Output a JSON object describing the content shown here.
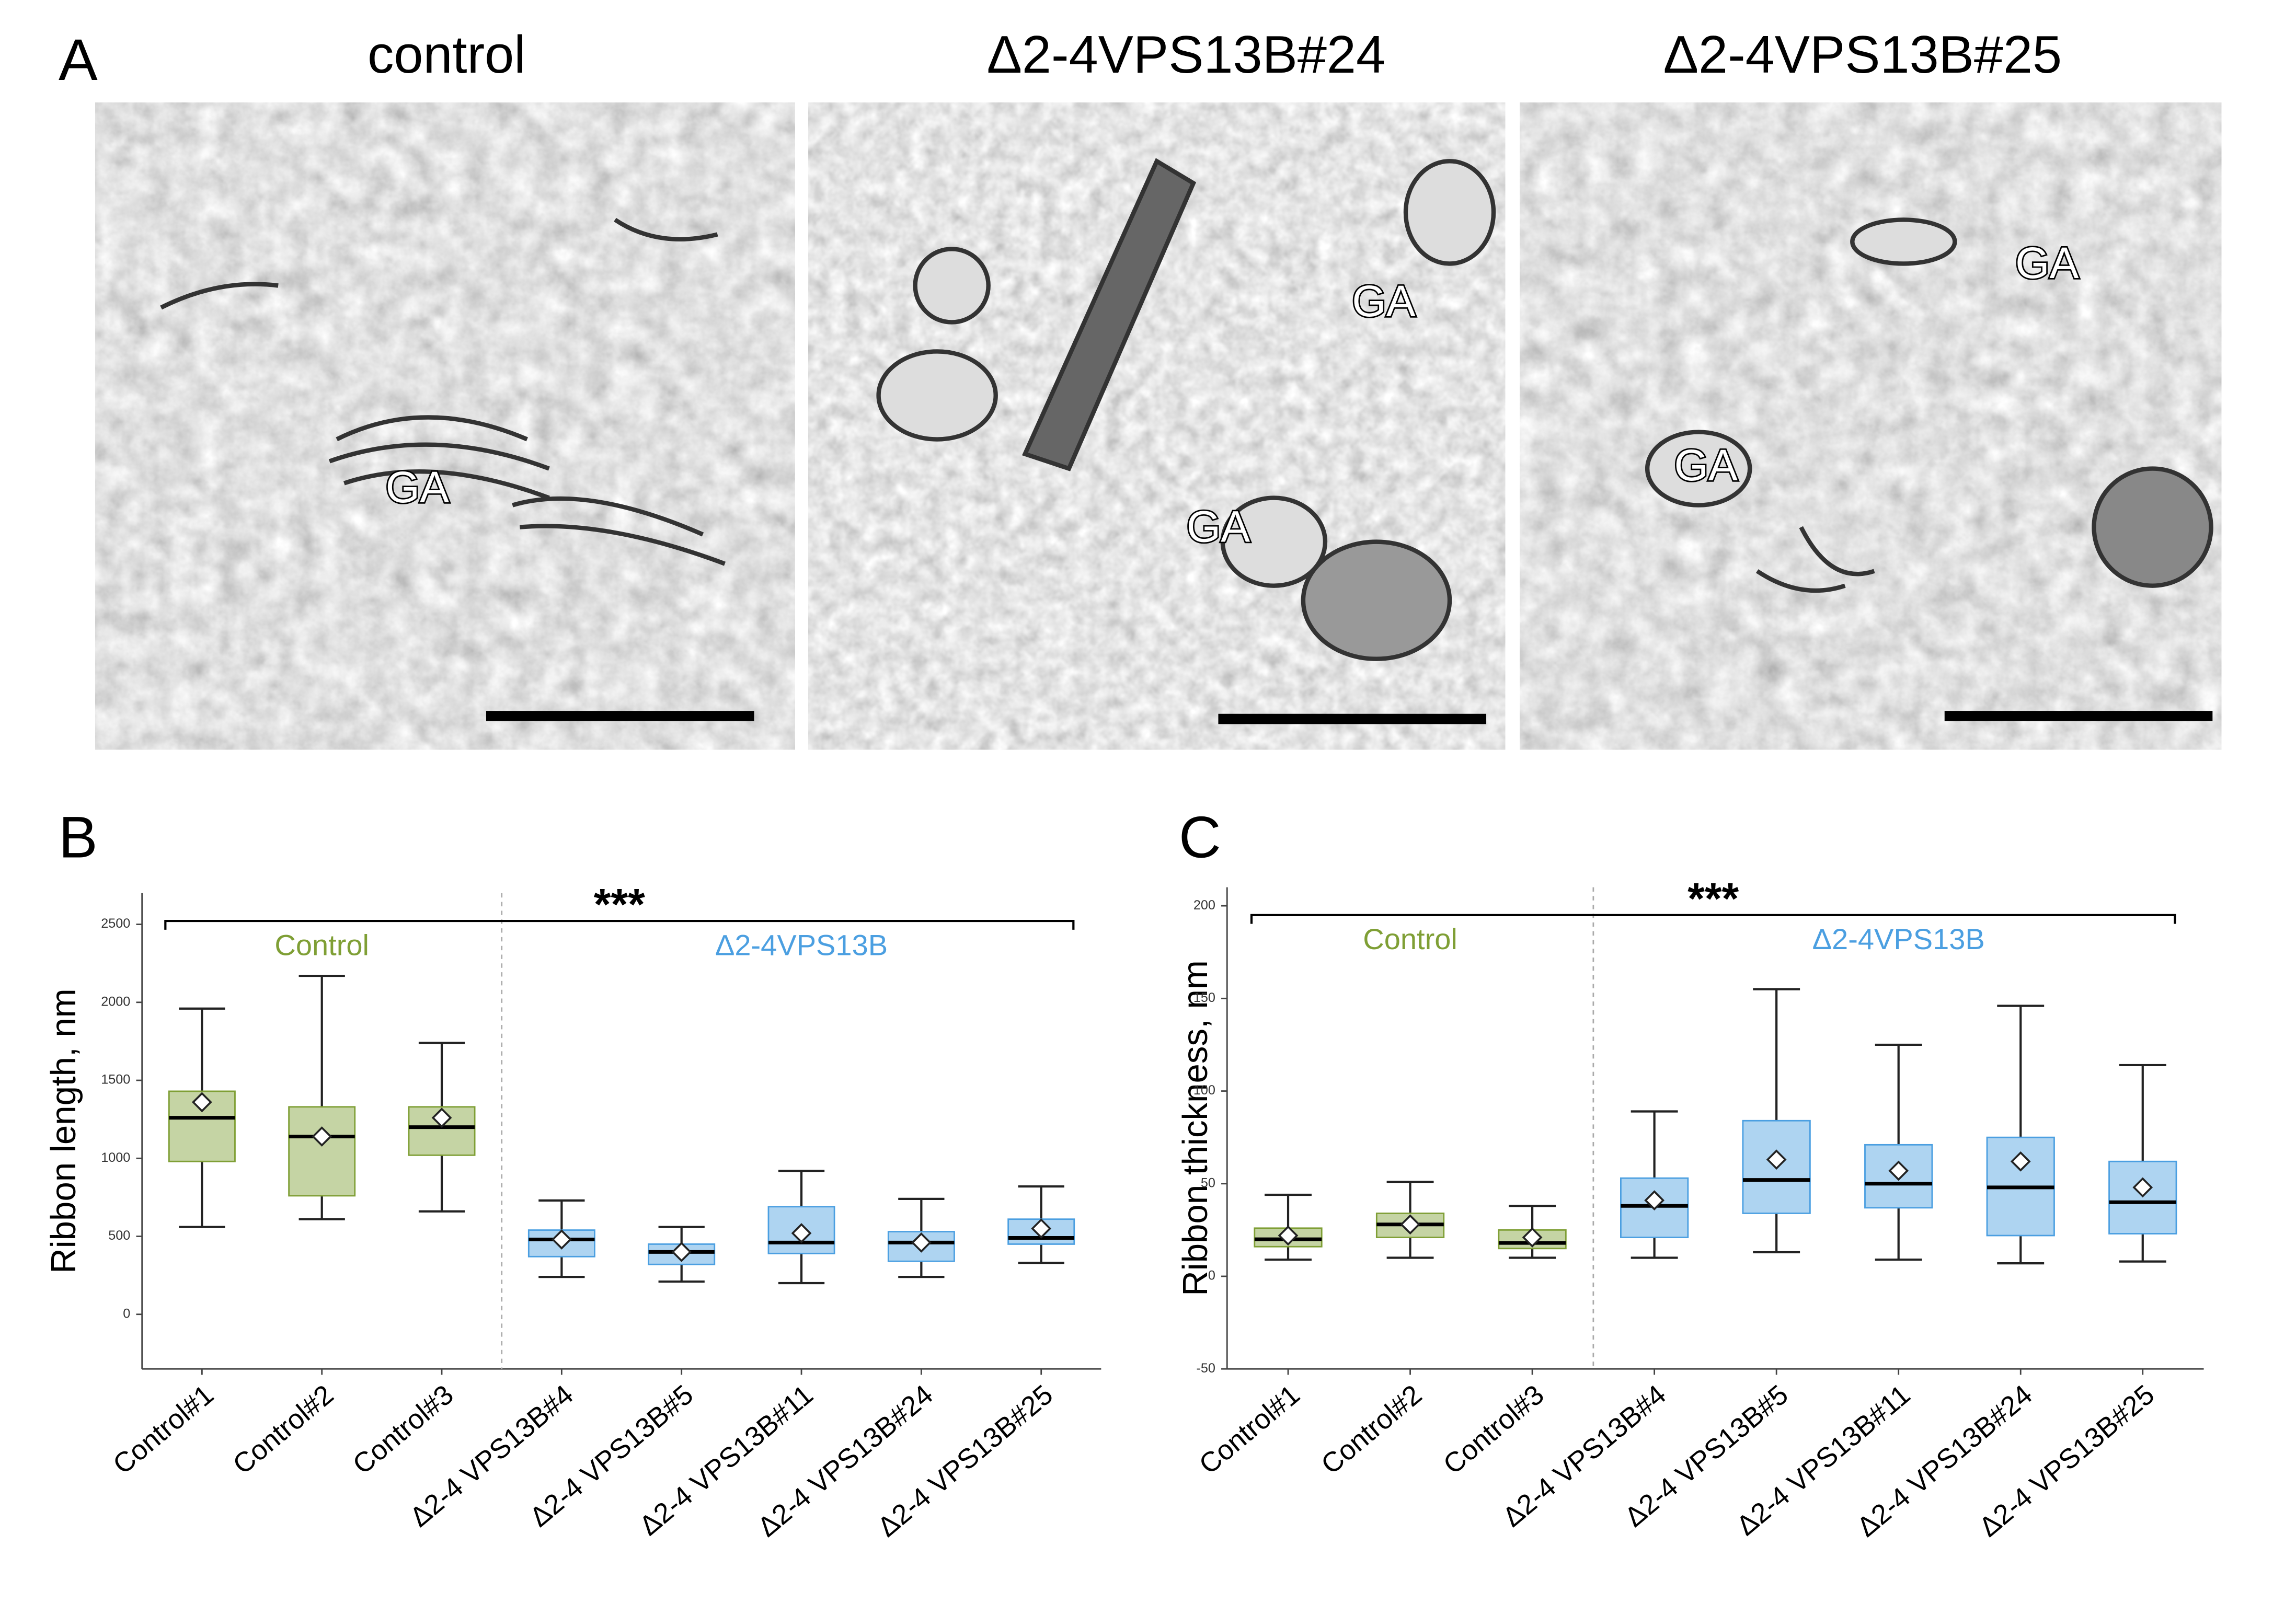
{
  "panel_a": {
    "label": "A",
    "images": [
      {
        "title": "control",
        "annotations": [
          "GA"
        ]
      },
      {
        "title": "Δ2-4VPS13B#24",
        "annotations": [
          "GA",
          "GA"
        ]
      },
      {
        "title": "Δ2-4VPS13B#25",
        "annotations": [
          "GA",
          "GA"
        ]
      }
    ]
  },
  "chart_data": [
    {
      "type": "box",
      "panel_label": "B",
      "ylabel": "Ribbon length, nm",
      "significance": "***",
      "categories": [
        "Control#1",
        "Control#2",
        "Control#3",
        "Δ2-4 VPS13B#4",
        "Δ2-4 VPS13B#5",
        "Δ2-4 VPS13B#11",
        "Δ2-4 VPS13B#24",
        "Δ2-4 VPS13B#25"
      ],
      "ylim": [
        -350,
        2700
      ],
      "yticks": [
        0,
        500,
        1000,
        1500,
        2000,
        2500
      ],
      "series": [
        {
          "name": "Control",
          "color": "#7f9f35",
          "values": [
            {
              "whislo": 560,
              "q1": 980,
              "med": 1260,
              "q3": 1430,
              "whishi": 1960,
              "mean": 1360
            },
            {
              "whislo": 610,
              "q1": 760,
              "med": 1140,
              "q3": 1330,
              "whishi": 2170,
              "mean": 1140
            },
            {
              "whislo": 660,
              "q1": 1020,
              "med": 1200,
              "q3": 1330,
              "whishi": 1740,
              "mean": 1260
            },
            null,
            null,
            null,
            null,
            null
          ]
        },
        {
          "name": "Δ2-4VPS13B",
          "color": "#4b9fe1",
          "values": [
            null,
            null,
            null,
            {
              "whislo": 240,
              "q1": 370,
              "med": 480,
              "q3": 540,
              "whishi": 730,
              "mean": 480
            },
            {
              "whislo": 210,
              "q1": 320,
              "med": 400,
              "q3": 450,
              "whishi": 560,
              "mean": 400
            },
            {
              "whislo": 200,
              "q1": 390,
              "med": 460,
              "q3": 690,
              "whishi": 920,
              "mean": 520
            },
            {
              "whislo": 240,
              "q1": 340,
              "med": 460,
              "q3": 530,
              "whishi": 740,
              "mean": 460
            },
            {
              "whislo": 330,
              "q1": 450,
              "med": 490,
              "q3": 610,
              "whishi": 820,
              "mean": 550
            }
          ]
        }
      ]
    },
    {
      "type": "box",
      "panel_label": "C",
      "ylabel": "Ribbon thickness, nm",
      "significance": "***",
      "categories": [
        "Control#1",
        "Control#2",
        "Control#3",
        "Δ2-4 VPS13B#4",
        "Δ2-4 VPS13B#5",
        "Δ2-4 VPS13B#11",
        "Δ2-4 VPS13B#24",
        "Δ2-4 VPS13B#25"
      ],
      "ylim": [
        -50,
        210
      ],
      "yticks": [
        -50,
        0,
        50,
        100,
        150,
        200
      ],
      "series": [
        {
          "name": "Control",
          "color": "#7f9f35",
          "values": [
            {
              "whislo": 9,
              "q1": 16,
              "med": 20,
              "q3": 26,
              "whishi": 44,
              "mean": 22
            },
            {
              "whislo": 10,
              "q1": 21,
              "med": 28,
              "q3": 34,
              "whishi": 51,
              "mean": 28
            },
            {
              "whislo": 10,
              "q1": 15,
              "med": 18,
              "q3": 25,
              "whishi": 38,
              "mean": 21
            },
            null,
            null,
            null,
            null,
            null
          ]
        },
        {
          "name": "Δ2-4VPS13B",
          "color": "#4b9fe1",
          "values": [
            null,
            null,
            null,
            {
              "whislo": 10,
              "q1": 21,
              "med": 38,
              "q3": 53,
              "whishi": 89,
              "mean": 41
            },
            {
              "whislo": 13,
              "q1": 34,
              "med": 52,
              "q3": 84,
              "whishi": 155,
              "mean": 63
            },
            {
              "whislo": 9,
              "q1": 37,
              "med": 50,
              "q3": 71,
              "whishi": 125,
              "mean": 57
            },
            {
              "whislo": 7,
              "q1": 22,
              "med": 48,
              "q3": 75,
              "whishi": 146,
              "mean": 62
            },
            {
              "whislo": 8,
              "q1": 23,
              "med": 40,
              "q3": 62,
              "whishi": 114,
              "mean": 48
            }
          ]
        }
      ]
    }
  ]
}
